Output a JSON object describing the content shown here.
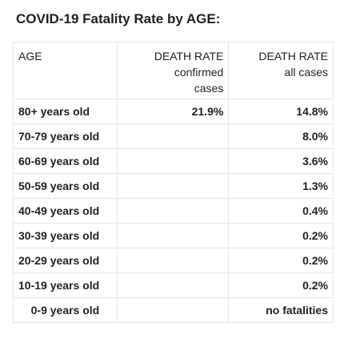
{
  "title": "COVID-19 Fatality Rate by AGE:",
  "headers": {
    "age": "AGE",
    "confirmed_main": "DEATH RATE",
    "confirmed_sub1": "confirmed",
    "confirmed_sub2": "cases",
    "all_main": "DEATH RATE",
    "all_sub": "all cases"
  },
  "rows": [
    {
      "age": "80+ years old",
      "confirmed": "21.9%",
      "all": "14.8%"
    },
    {
      "age": "70-79 years old",
      "confirmed": "",
      "all": "8.0%"
    },
    {
      "age": "60-69 years old",
      "confirmed": "",
      "all": "3.6%"
    },
    {
      "age": "50-59 years old",
      "confirmed": "",
      "all": "1.3%"
    },
    {
      "age": "40-49 years old",
      "confirmed": "",
      "all": "0.4%"
    },
    {
      "age": "30-39 years old",
      "confirmed": "",
      "all": "0.2%"
    },
    {
      "age": "20-29 years old",
      "confirmed": "",
      "all": "0.2%"
    },
    {
      "age": "10-19 years old",
      "confirmed": "",
      "all": "0.2%"
    },
    {
      "age": "0-9 years old",
      "confirmed": "",
      "all": "no fatalities"
    }
  ]
}
